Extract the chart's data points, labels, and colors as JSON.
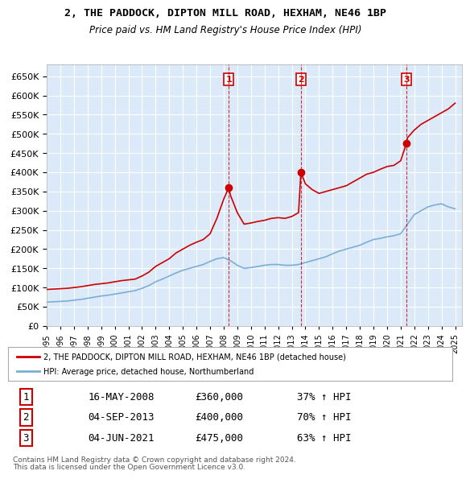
{
  "title": "2, THE PADDOCK, DIPTON MILL ROAD, HEXHAM, NE46 1BP",
  "subtitle": "Price paid vs. HM Land Registry's House Price Index (HPI)",
  "background_color": "#dce9f8",
  "plot_background": "#dce9f8",
  "ylim": [
    0,
    680000
  ],
  "yticks": [
    0,
    50000,
    100000,
    150000,
    200000,
    250000,
    300000,
    350000,
    400000,
    450000,
    500000,
    550000,
    600000,
    650000
  ],
  "xlim_start": 1995.0,
  "xlim_end": 2025.5,
  "sale_dates": [
    2008.37,
    2013.67,
    2021.42
  ],
  "sale_prices": [
    360000,
    400000,
    475000
  ],
  "sale_labels": [
    "1",
    "2",
    "3"
  ],
  "legend_red": "2, THE PADDOCK, DIPTON MILL ROAD, HEXHAM, NE46 1BP (detached house)",
  "legend_blue": "HPI: Average price, detached house, Northumberland",
  "table_rows": [
    [
      "1",
      "16-MAY-2008",
      "£360,000",
      "37% ↑ HPI"
    ],
    [
      "2",
      "04-SEP-2013",
      "£400,000",
      "70% ↑ HPI"
    ],
    [
      "3",
      "04-JUN-2021",
      "£475,000",
      "63% ↑ HPI"
    ]
  ],
  "footnote1": "Contains HM Land Registry data © Crown copyright and database right 2024.",
  "footnote2": "This data is licensed under the Open Government Licence v3.0.",
  "red_line_x": [
    1995.0,
    1995.5,
    1996.0,
    1996.5,
    1997.0,
    1997.5,
    1998.0,
    1998.5,
    1999.0,
    1999.5,
    2000.0,
    2000.5,
    2001.0,
    2001.5,
    2002.0,
    2002.5,
    2003.0,
    2003.5,
    2004.0,
    2004.5,
    2005.0,
    2005.5,
    2006.0,
    2006.5,
    2007.0,
    2007.5,
    2008.0,
    2008.37,
    2008.5,
    2009.0,
    2009.5,
    2010.0,
    2010.5,
    2011.0,
    2011.5,
    2012.0,
    2012.5,
    2013.0,
    2013.5,
    2013.67,
    2014.0,
    2014.5,
    2015.0,
    2015.5,
    2016.0,
    2016.5,
    2017.0,
    2017.5,
    2018.0,
    2018.5,
    2019.0,
    2019.5,
    2020.0,
    2020.5,
    2021.0,
    2021.42,
    2021.5,
    2022.0,
    2022.5,
    2023.0,
    2023.5,
    2024.0,
    2024.5,
    2025.0
  ],
  "red_line_y": [
    95000,
    96000,
    97000,
    98000,
    100000,
    102000,
    105000,
    108000,
    110000,
    112000,
    115000,
    118000,
    120000,
    122000,
    130000,
    140000,
    155000,
    165000,
    175000,
    190000,
    200000,
    210000,
    218000,
    225000,
    240000,
    280000,
    330000,
    360000,
    340000,
    295000,
    265000,
    268000,
    272000,
    275000,
    280000,
    282000,
    280000,
    285000,
    295000,
    400000,
    370000,
    355000,
    345000,
    350000,
    355000,
    360000,
    365000,
    375000,
    385000,
    395000,
    400000,
    408000,
    415000,
    418000,
    430000,
    475000,
    490000,
    510000,
    525000,
    535000,
    545000,
    555000,
    565000,
    580000
  ],
  "blue_line_x": [
    1995.0,
    1995.5,
    1996.0,
    1996.5,
    1997.0,
    1997.5,
    1998.0,
    1998.5,
    1999.0,
    1999.5,
    2000.0,
    2000.5,
    2001.0,
    2001.5,
    2002.0,
    2002.5,
    2003.0,
    2003.5,
    2004.0,
    2004.5,
    2005.0,
    2005.5,
    2006.0,
    2006.5,
    2007.0,
    2007.5,
    2008.0,
    2008.5,
    2009.0,
    2009.5,
    2010.0,
    2010.5,
    2011.0,
    2011.5,
    2012.0,
    2012.5,
    2013.0,
    2013.5,
    2014.0,
    2014.5,
    2015.0,
    2015.5,
    2016.0,
    2016.5,
    2017.0,
    2017.5,
    2018.0,
    2018.5,
    2019.0,
    2019.5,
    2020.0,
    2020.5,
    2021.0,
    2021.5,
    2022.0,
    2022.5,
    2023.0,
    2023.5,
    2024.0,
    2024.5,
    2025.0
  ],
  "blue_line_y": [
    62000,
    63000,
    64000,
    65000,
    67000,
    69000,
    72000,
    75000,
    78000,
    80000,
    83000,
    86000,
    89000,
    92000,
    98000,
    105000,
    115000,
    122000,
    130000,
    138000,
    145000,
    150000,
    155000,
    160000,
    168000,
    175000,
    178000,
    170000,
    158000,
    150000,
    152000,
    155000,
    158000,
    160000,
    160000,
    158000,
    158000,
    160000,
    165000,
    170000,
    175000,
    180000,
    188000,
    195000,
    200000,
    205000,
    210000,
    218000,
    225000,
    228000,
    232000,
    235000,
    240000,
    265000,
    290000,
    300000,
    310000,
    315000,
    318000,
    310000,
    305000
  ]
}
